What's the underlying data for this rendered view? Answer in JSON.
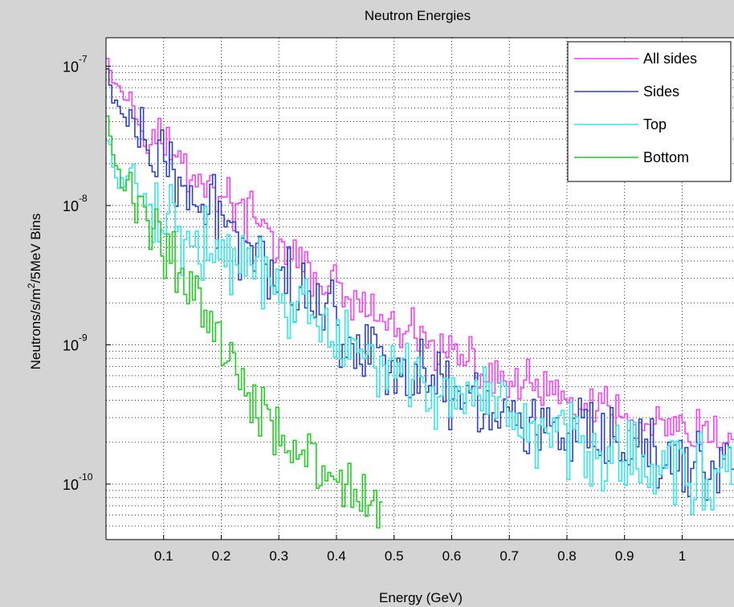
{
  "chart_data": {
    "type": "line",
    "title": "Neutron Energies",
    "xlabel": "Energy (GeV)",
    "ylabel_parts": [
      "Neutrons/s/m",
      "2",
      "/5MeV Bins"
    ],
    "x_scale": "linear",
    "y_scale": "log",
    "xlim": [
      0,
      1.09
    ],
    "ylim": [
      4e-11,
      1.6e-07
    ],
    "grid": true,
    "legend_position": "top-right",
    "x_ticks": [
      {
        "value": 0.1,
        "label": "0.1"
      },
      {
        "value": 0.2,
        "label": "0.2"
      },
      {
        "value": 0.3,
        "label": "0.3"
      },
      {
        "value": 0.4,
        "label": "0.4"
      },
      {
        "value": 0.5,
        "label": "0.5"
      },
      {
        "value": 0.6,
        "label": "0.6"
      },
      {
        "value": 0.7,
        "label": "0.7"
      },
      {
        "value": 0.8,
        "label": "0.8"
      },
      {
        "value": 0.9,
        "label": "0.9"
      },
      {
        "value": 1.0,
        "label": "1"
      }
    ],
    "y_ticks": [
      {
        "value": 1e-07,
        "base": "10",
        "exp": "-7"
      },
      {
        "value": 1e-08,
        "base": "10",
        "exp": "-8"
      },
      {
        "value": 1e-09,
        "base": "10",
        "exp": "-9"
      },
      {
        "value": 1e-10,
        "base": "10",
        "exp": "-10"
      }
    ],
    "bin_width": 0.005,
    "series": [
      {
        "name": "All sides",
        "color": "#ff3dff",
        "points": [
          [
            0.0,
            1.4e-07
          ],
          [
            0.01,
            9e-08
          ],
          [
            0.03,
            6.3e-08
          ],
          [
            0.05,
            5e-08
          ],
          [
            0.07,
            4e-08
          ],
          [
            0.09,
            3.2e-08
          ],
          [
            0.11,
            2.5e-08
          ],
          [
            0.13,
            2e-08
          ],
          [
            0.15,
            1.7e-08
          ],
          [
            0.17,
            1.55e-08
          ],
          [
            0.19,
            1.3e-08
          ],
          [
            0.21,
            1.1e-08
          ],
          [
            0.23,
            9.4e-09
          ],
          [
            0.25,
            8e-09
          ],
          [
            0.27,
            6.9e-09
          ],
          [
            0.29,
            5.7e-09
          ],
          [
            0.31,
            4.6e-09
          ],
          [
            0.33,
            3.9e-09
          ],
          [
            0.35,
            3.4e-09
          ],
          [
            0.37,
            3e-09
          ],
          [
            0.39,
            2.6e-09
          ],
          [
            0.41,
            2.3e-09
          ],
          [
            0.43,
            2e-09
          ],
          [
            0.45,
            1.7e-09
          ],
          [
            0.47,
            1.55e-09
          ],
          [
            0.5,
            1.3e-09
          ],
          [
            0.53,
            1.15e-09
          ],
          [
            0.56,
            1e-09
          ],
          [
            0.6,
            8.5e-10
          ],
          [
            0.64,
            6.8e-10
          ],
          [
            0.68,
            5.8e-10
          ],
          [
            0.72,
            5.2e-10
          ],
          [
            0.76,
            4.5e-10
          ],
          [
            0.8,
            3.9e-10
          ],
          [
            0.84,
            3.5e-10
          ],
          [
            0.88,
            3e-10
          ],
          [
            0.92,
            2.7e-10
          ],
          [
            0.96,
            2.5e-10
          ],
          [
            1.0,
            2.3e-10
          ],
          [
            1.04,
            2.1e-10
          ],
          [
            1.09,
            2e-10
          ]
        ],
        "noise": 0.22
      },
      {
        "name": "Sides",
        "color": "#2a3fd6",
        "points": [
          [
            0.0,
            1e-07
          ],
          [
            0.01,
            6.5e-08
          ],
          [
            0.03,
            4.2e-08
          ],
          [
            0.05,
            3.3e-08
          ],
          [
            0.07,
            2.6e-08
          ],
          [
            0.09,
            2.1e-08
          ],
          [
            0.11,
            1.7e-08
          ],
          [
            0.13,
            1.35e-08
          ],
          [
            0.15,
            1.1e-08
          ],
          [
            0.17,
            9.6e-09
          ],
          [
            0.19,
            8.4e-09
          ],
          [
            0.21,
            7.3e-09
          ],
          [
            0.23,
            6.1e-09
          ],
          [
            0.25,
            5.1e-09
          ],
          [
            0.27,
            4.3e-09
          ],
          [
            0.29,
            3.6e-09
          ],
          [
            0.31,
            3.1e-09
          ],
          [
            0.33,
            2.6e-09
          ],
          [
            0.35,
            2.3e-09
          ],
          [
            0.37,
            2e-09
          ],
          [
            0.39,
            1.7e-09
          ],
          [
            0.41,
            1.35e-09
          ],
          [
            0.43,
            1.1e-09
          ],
          [
            0.46,
            9.2e-10
          ],
          [
            0.5,
            7.5e-10
          ],
          [
            0.54,
            6.2e-10
          ],
          [
            0.58,
            5.2e-10
          ],
          [
            0.62,
            4.3e-10
          ],
          [
            0.66,
            3.6e-10
          ],
          [
            0.7,
            3.1e-10
          ],
          [
            0.75,
            2.6e-10
          ],
          [
            0.8,
            2.2e-10
          ],
          [
            0.85,
            1.9e-10
          ],
          [
            0.9,
            1.7e-10
          ],
          [
            0.95,
            1.55e-10
          ],
          [
            1.0,
            1.4e-10
          ],
          [
            1.09,
            1.3e-10
          ]
        ],
        "noise": 0.32
      },
      {
        "name": "Top",
        "color": "#30e8ec",
        "points": [
          [
            0.0,
            3e-08
          ],
          [
            0.01,
            2.2e-08
          ],
          [
            0.02,
            1.6e-08
          ],
          [
            0.04,
            1.3e-08
          ],
          [
            0.06,
            1.15e-08
          ],
          [
            0.08,
            1e-08
          ],
          [
            0.1,
            8.4e-09
          ],
          [
            0.12,
            7.4e-09
          ],
          [
            0.14,
            6.3e-09
          ],
          [
            0.16,
            5.4e-09
          ],
          [
            0.18,
            4.7e-09
          ],
          [
            0.2,
            4.4e-09
          ],
          [
            0.22,
            4.1e-09
          ],
          [
            0.24,
            3.6e-09
          ],
          [
            0.26,
            3.2e-09
          ],
          [
            0.28,
            2.7e-09
          ],
          [
            0.3,
            2.3e-09
          ],
          [
            0.32,
            2e-09
          ],
          [
            0.34,
            1.7e-09
          ],
          [
            0.36,
            1.45e-09
          ],
          [
            0.38,
            1.2e-09
          ],
          [
            0.4,
            1e-09
          ],
          [
            0.43,
            8.6e-10
          ],
          [
            0.46,
            7.6e-10
          ],
          [
            0.5,
            6.5e-10
          ],
          [
            0.54,
            5.4e-10
          ],
          [
            0.58,
            4.5e-10
          ],
          [
            0.62,
            3.8e-10
          ],
          [
            0.66,
            3.2e-10
          ],
          [
            0.7,
            2.8e-10
          ],
          [
            0.75,
            2.4e-10
          ],
          [
            0.8,
            2.1e-10
          ],
          [
            0.85,
            1.8e-10
          ],
          [
            0.9,
            1.6e-10
          ],
          [
            0.95,
            1.4e-10
          ],
          [
            1.0,
            1.25e-10
          ],
          [
            1.09,
            1.1e-10
          ]
        ],
        "noise": 0.35
      },
      {
        "name": "Bottom",
        "color": "#1fd11f",
        "points": [
          [
            0.0,
            5e-08
          ],
          [
            0.01,
            2.6e-08
          ],
          [
            0.02,
            1.7e-08
          ],
          [
            0.04,
            1.25e-08
          ],
          [
            0.06,
            9.8e-09
          ],
          [
            0.08,
            7.6e-09
          ],
          [
            0.1,
            5.6e-09
          ],
          [
            0.12,
            4.1e-09
          ],
          [
            0.14,
            3e-09
          ],
          [
            0.16,
            2.1e-09
          ],
          [
            0.18,
            1.5e-09
          ],
          [
            0.2,
            1.05e-09
          ],
          [
            0.22,
            7.6e-10
          ],
          [
            0.24,
            5.6e-10
          ],
          [
            0.26,
            4.2e-10
          ],
          [
            0.28,
            3.2e-10
          ],
          [
            0.3,
            2.5e-10
          ],
          [
            0.32,
            2e-10
          ],
          [
            0.34,
            1.6e-10
          ],
          [
            0.36,
            1.3e-10
          ],
          [
            0.38,
            1.1e-10
          ],
          [
            0.4,
            9.5e-11
          ],
          [
            0.42,
            8.5e-11
          ],
          [
            0.44,
            7.5e-11
          ],
          [
            0.46,
            7e-11
          ],
          [
            0.48,
            6.5e-11
          ]
        ],
        "noise": 0.3,
        "end": 0.48
      }
    ]
  }
}
